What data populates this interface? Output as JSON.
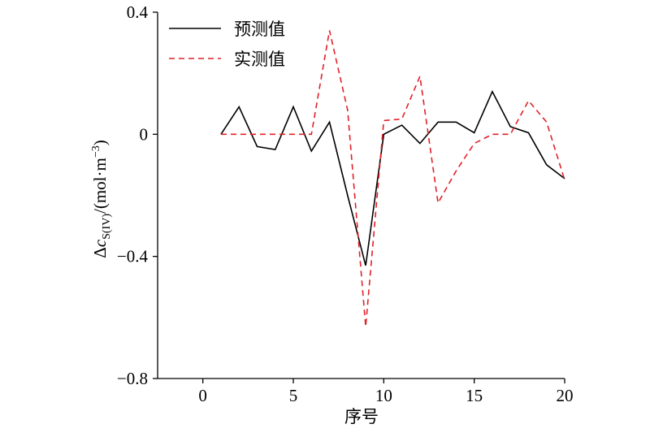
{
  "chart_data": {
    "type": "line",
    "x_label": "序号",
    "y_label_parts": [
      "Δ",
      "c",
      "S(IV)",
      "/(mol·m",
      "−3",
      ")"
    ],
    "x": [
      1,
      2,
      3,
      4,
      5,
      6,
      7,
      8,
      9,
      10,
      11,
      12,
      13,
      14,
      15,
      16,
      17,
      18,
      19,
      20
    ],
    "series": [
      {
        "name": "预测值",
        "color": "#000000",
        "dash": "solid",
        "values": [
          0,
          0.09,
          -0.04,
          -0.05,
          0.09,
          -0.055,
          0.04,
          -0.2,
          -0.43,
          0,
          0.03,
          -0.03,
          0.04,
          0.04,
          0.005,
          0.14,
          0.025,
          0.005,
          -0.1,
          -0.145
        ]
      },
      {
        "name": "实测值",
        "color": "#e0202a",
        "dash": "dashed",
        "values": [
          0,
          0,
          0,
          0,
          0,
          0,
          0.34,
          0.08,
          -0.63,
          0.045,
          0.05,
          0.19,
          -0.225,
          -0.12,
          -0.03,
          0,
          0,
          0.11,
          0.04,
          -0.15
        ]
      }
    ],
    "xlim": [
      -2.5,
      20
    ],
    "xticks": [
      0,
      5,
      10,
      15,
      20
    ],
    "ylim": [
      -0.8,
      0.4
    ],
    "yticks": [
      {
        "value": -0.8,
        "label": "−0.8"
      },
      {
        "value": -0.4,
        "label": "−0.4"
      },
      0,
      0.4
    ],
    "legend": "top-left"
  }
}
